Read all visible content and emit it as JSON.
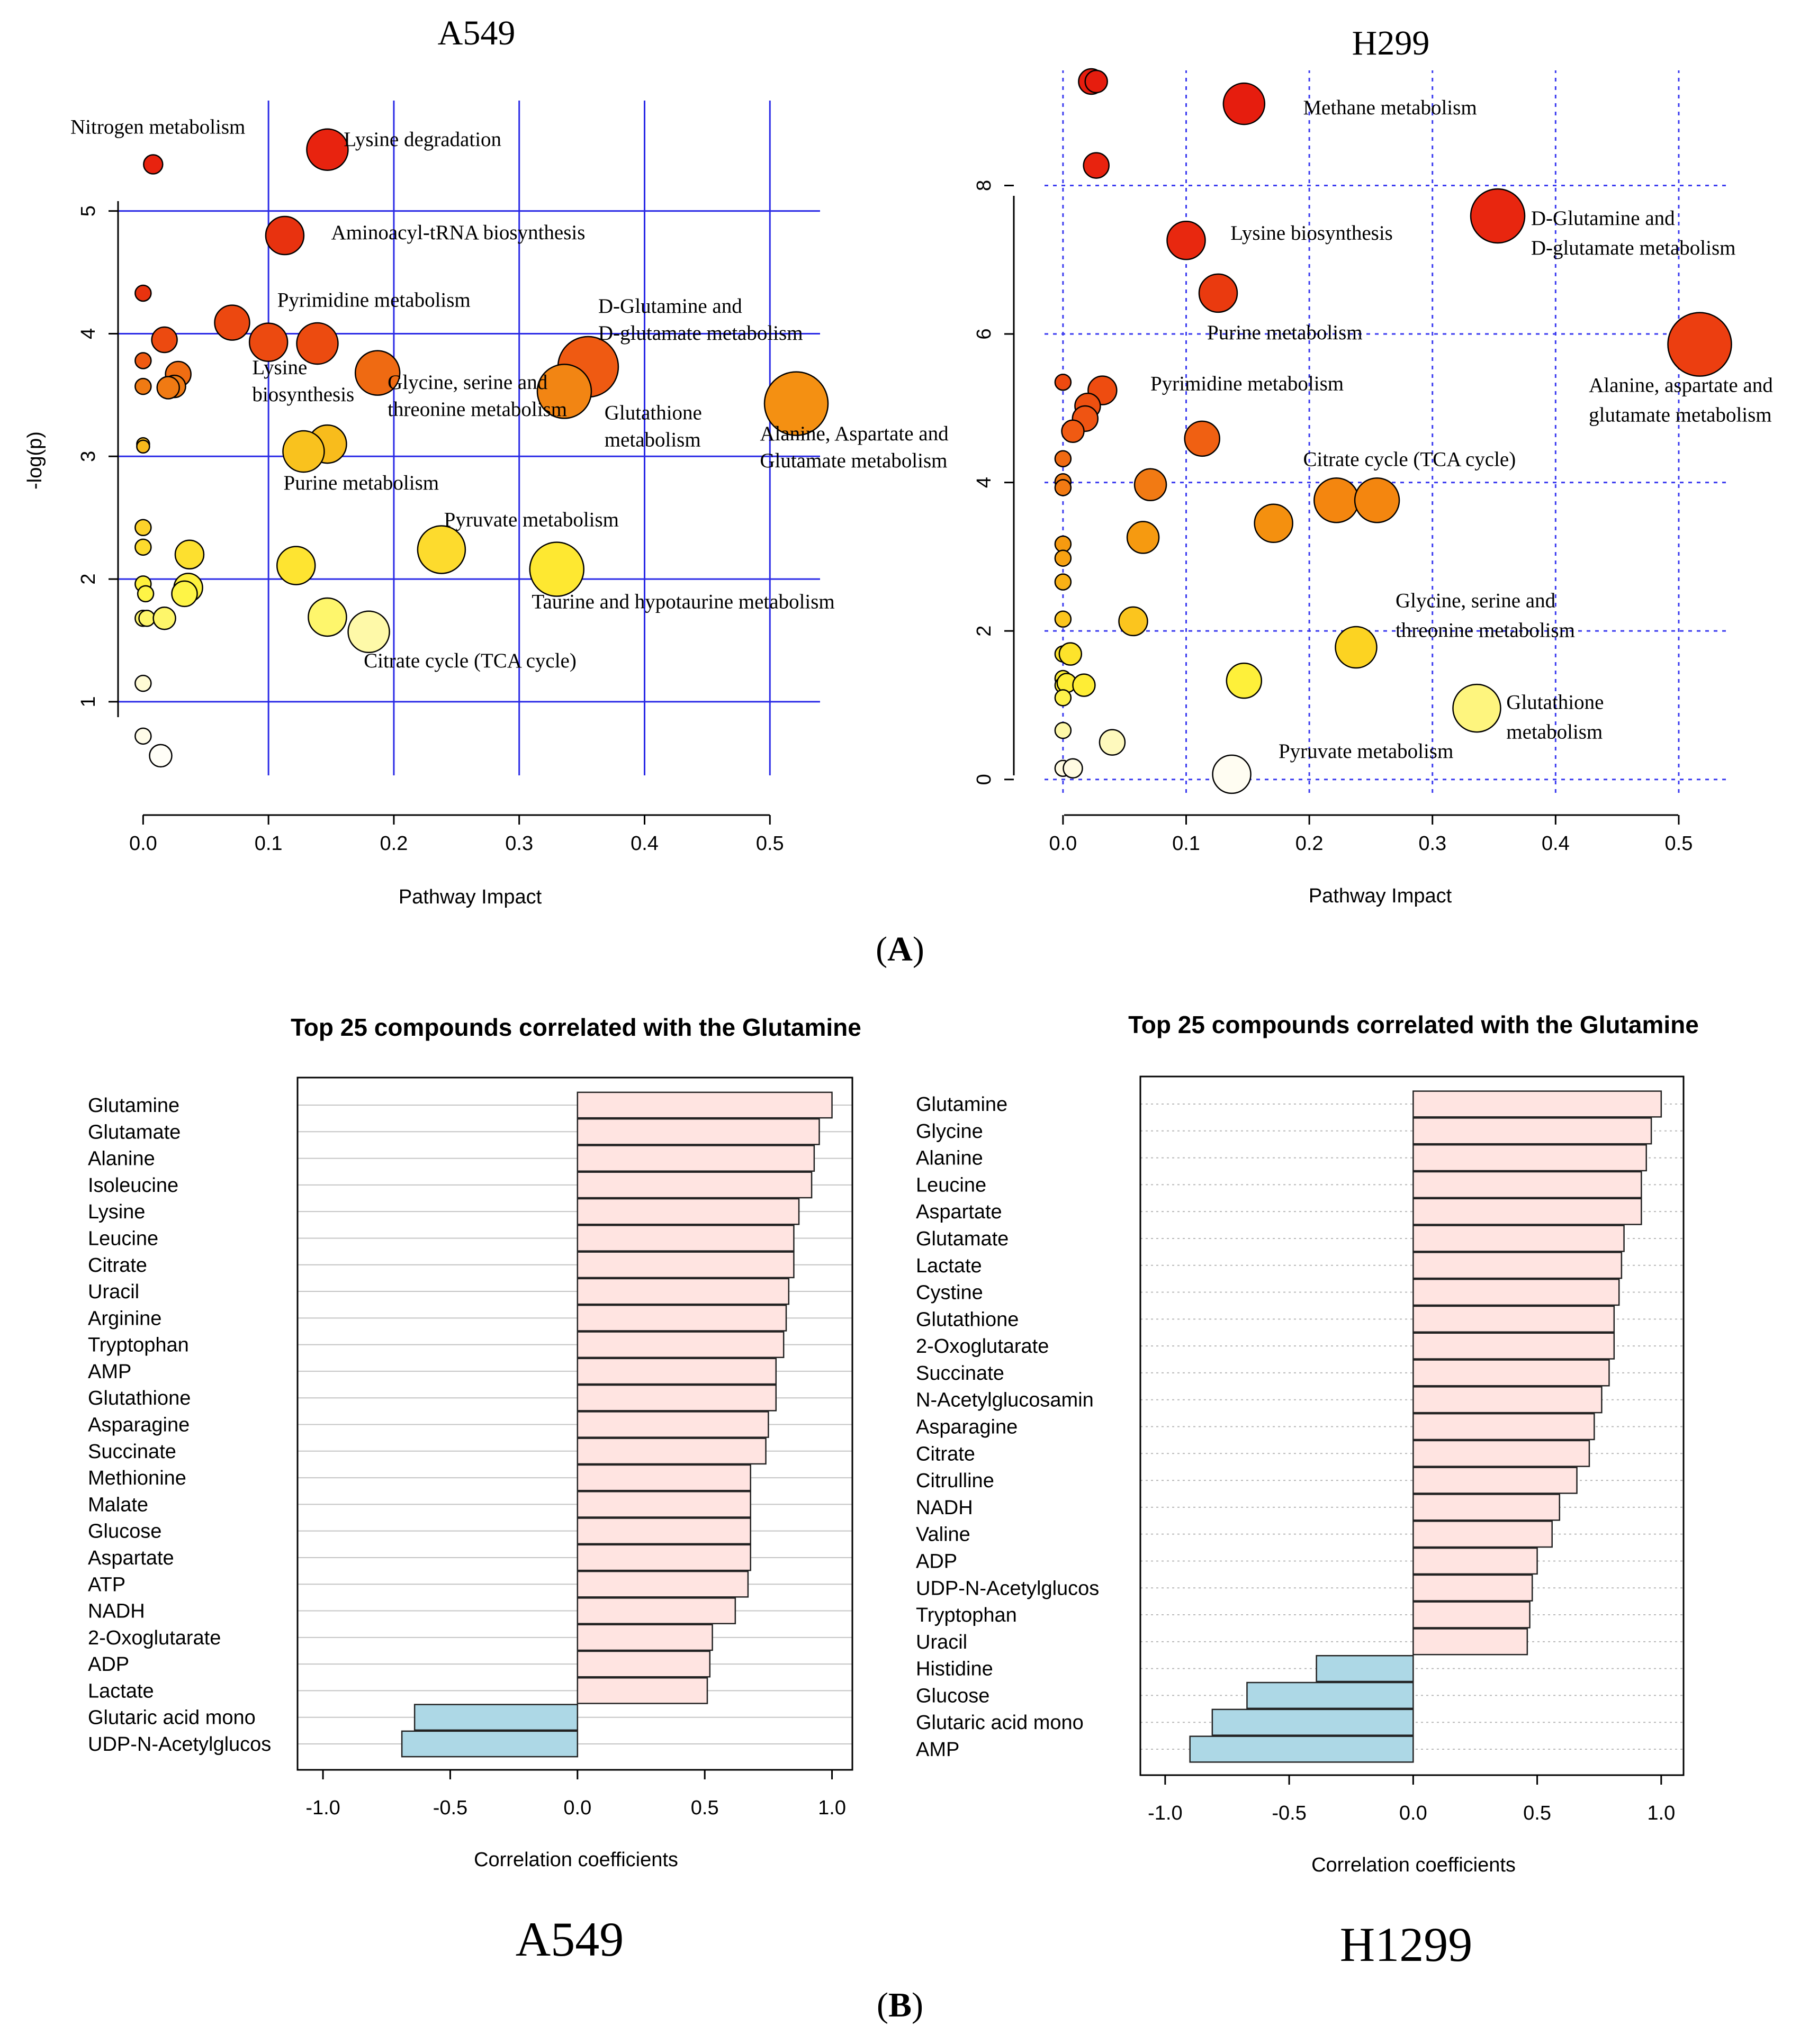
{
  "panel_a_label": "A",
  "panel_b_label": "B",
  "chart_data": [
    {
      "id": "a549_pathway",
      "type": "scatter",
      "title": "A549",
      "xlabel": "Pathway Impact",
      "ylabel": "-log(p)",
      "xlim": [
        -0.02,
        0.54
      ],
      "ylim": [
        0.4,
        5.9
      ],
      "xticks": [
        0.0,
        0.1,
        0.2,
        0.3,
        0.4,
        0.5
      ],
      "yticks": [
        1,
        2,
        3,
        4,
        5
      ],
      "xtick_labels": [
        "0.0",
        "0.1",
        "0.2",
        "0.3",
        "0.4",
        "0.5"
      ],
      "ytick_labels": [
        "1",
        "2",
        "3",
        "4",
        "5"
      ],
      "grid_x": [
        0.1,
        0.2,
        0.3,
        0.4,
        0.5
      ],
      "grid_y": [
        1,
        2,
        3,
        4,
        5
      ],
      "points": [
        {
          "x": 0.008,
          "y": 5.38,
          "r": 0.6,
          "color": "#e8230f"
        },
        {
          "x": 0.147,
          "y": 5.5,
          "r": 1.3,
          "color": "#e8230f"
        },
        {
          "x": 0.113,
          "y": 4.8,
          "r": 1.2,
          "color": "#e8320f"
        },
        {
          "x": 0.0,
          "y": 4.33,
          "r": 0.5,
          "color": "#e8330f"
        },
        {
          "x": 0.071,
          "y": 4.09,
          "r": 1.1,
          "color": "#ec4810"
        },
        {
          "x": 0.017,
          "y": 3.95,
          "r": 0.8,
          "color": "#ec4a10"
        },
        {
          "x": 0.1,
          "y": 3.93,
          "r": 1.2,
          "color": "#ec4a10"
        },
        {
          "x": 0.139,
          "y": 3.92,
          "r": 1.3,
          "color": "#ec4b10"
        },
        {
          "x": 0.0,
          "y": 3.78,
          "r": 0.5,
          "color": "#ef5a12"
        },
        {
          "x": 0.355,
          "y": 3.73,
          "r": 1.9,
          "color": "#ef5a12"
        },
        {
          "x": 0.187,
          "y": 3.68,
          "r": 1.4,
          "color": "#ef6a12"
        },
        {
          "x": 0.028,
          "y": 3.67,
          "r": 0.8,
          "color": "#f06d12"
        },
        {
          "x": 0.0,
          "y": 3.57,
          "r": 0.5,
          "color": "#f07a13"
        },
        {
          "x": 0.025,
          "y": 3.57,
          "r": 0.7,
          "color": "#f07a13"
        },
        {
          "x": 0.02,
          "y": 3.56,
          "r": 0.7,
          "color": "#f07a13"
        },
        {
          "x": 0.336,
          "y": 3.53,
          "r": 1.7,
          "color": "#f28513"
        },
        {
          "x": 0.521,
          "y": 3.43,
          "r": 2.0,
          "color": "#f49012"
        },
        {
          "x": 0.0,
          "y": 3.1,
          "r": 0.4,
          "color": "#f8ba1c"
        },
        {
          "x": 0.0,
          "y": 3.08,
          "r": 0.4,
          "color": "#f8ba1c"
        },
        {
          "x": 0.147,
          "y": 3.1,
          "r": 1.2,
          "color": "#f8bc1c"
        },
        {
          "x": 0.128,
          "y": 3.04,
          "r": 1.3,
          "color": "#f9c21e"
        },
        {
          "x": 0.0,
          "y": 2.42,
          "r": 0.5,
          "color": "#fcd22a"
        },
        {
          "x": 0.0,
          "y": 2.26,
          "r": 0.5,
          "color": "#fddb2d"
        },
        {
          "x": 0.238,
          "y": 2.24,
          "r": 1.5,
          "color": "#fddb2d"
        },
        {
          "x": 0.037,
          "y": 2.2,
          "r": 0.9,
          "color": "#fde02f"
        },
        {
          "x": 0.122,
          "y": 2.11,
          "r": 1.2,
          "color": "#fee431"
        },
        {
          "x": 0.33,
          "y": 2.08,
          "r": 1.7,
          "color": "#fee831"
        },
        {
          "x": 0.0,
          "y": 1.96,
          "r": 0.5,
          "color": "#fef13c"
        },
        {
          "x": 0.036,
          "y": 1.93,
          "r": 0.9,
          "color": "#fef13e"
        },
        {
          "x": 0.002,
          "y": 1.88,
          "r": 0.5,
          "color": "#fef446"
        },
        {
          "x": 0.033,
          "y": 1.88,
          "r": 0.8,
          "color": "#fef446"
        },
        {
          "x": 0.0,
          "y": 1.68,
          "r": 0.5,
          "color": "#fef66a"
        },
        {
          "x": 0.003,
          "y": 1.68,
          "r": 0.5,
          "color": "#fef66a"
        },
        {
          "x": 0.017,
          "y": 1.68,
          "r": 0.7,
          "color": "#fef66a"
        },
        {
          "x": 0.147,
          "y": 1.69,
          "r": 1.2,
          "color": "#fef66c"
        },
        {
          "x": 0.18,
          "y": 1.57,
          "r": 1.3,
          "color": "#fef9a8"
        },
        {
          "x": 0.0,
          "y": 1.15,
          "r": 0.5,
          "color": "#fffbd5"
        },
        {
          "x": 0.0,
          "y": 0.72,
          "r": 0.5,
          "color": "#fffce8"
        },
        {
          "x": 0.014,
          "y": 0.56,
          "r": 0.7,
          "color": "#fffef7"
        }
      ],
      "annotations": [
        {
          "text": "Nitrogen metabolism",
          "x": -0.058,
          "y": 5.63
        },
        {
          "text": "Lysine degradation",
          "x": 0.16,
          "y": 5.53
        },
        {
          "text": "Aminoacyl-tRNA biosynthesis",
          "x": 0.15,
          "y": 4.77
        },
        {
          "text": "Pyrimidine metabolism",
          "x": 0.107,
          "y": 4.22
        },
        {
          "text": "D-Glutamine and",
          "x": 0.363,
          "y": 4.17
        },
        {
          "text": "D-glutamate metabolism",
          "x": 0.363,
          "y": 3.95
        },
        {
          "text": "Lysine",
          "x": 0.087,
          "y": 3.67
        },
        {
          "text": "biosynthesis",
          "x": 0.087,
          "y": 3.45
        },
        {
          "text": "Glycine, serine and",
          "x": 0.195,
          "y": 3.55
        },
        {
          "text": "threonine metabolism",
          "x": 0.195,
          "y": 3.33
        },
        {
          "text": "Glutathione",
          "x": 0.368,
          "y": 3.3
        },
        {
          "text": "metabolism",
          "x": 0.368,
          "y": 3.08
        },
        {
          "text": "Alanine, Aspartate and",
          "x": 0.492,
          "y": 3.13
        },
        {
          "text": "Glutamate metabolism",
          "x": 0.492,
          "y": 2.91
        },
        {
          "text": "Purine metabolism",
          "x": 0.112,
          "y": 2.73
        },
        {
          "text": "Pyruvate metabolism",
          "x": 0.24,
          "y": 2.43
        },
        {
          "text": "Taurine and hypotaurine metabolism",
          "x": 0.31,
          "y": 1.76
        },
        {
          "text": "Citrate cycle (TCA cycle)",
          "x": 0.176,
          "y": 1.28
        }
      ]
    },
    {
      "id": "h299_pathway",
      "type": "scatter",
      "title": "H299",
      "xlabel": "Pathway Impact",
      "ylabel": "",
      "xlim": [
        -0.015,
        0.54
      ],
      "ylim": [
        -0.18,
        9.55
      ],
      "xticks": [
        0.0,
        0.1,
        0.2,
        0.3,
        0.4,
        0.5
      ],
      "yticks": [
        0,
        2,
        4,
        6,
        8
      ],
      "xtick_labels": [
        "0.0",
        "0.1",
        "0.2",
        "0.3",
        "0.4",
        "0.5"
      ],
      "ytick_labels": [
        "0",
        "2",
        "4",
        "6",
        "8"
      ],
      "grid_x": [
        0.0,
        0.1,
        0.2,
        0.3,
        0.4,
        0.5
      ],
      "grid_y": [
        0,
        2,
        4,
        6,
        8
      ],
      "points": [
        {
          "x": 0.023,
          "y": 9.4,
          "r": 0.8,
          "color": "#e61d0e"
        },
        {
          "x": 0.027,
          "y": 9.4,
          "r": 0.7,
          "color": "#e61d0e"
        },
        {
          "x": 0.147,
          "y": 9.1,
          "r": 1.3,
          "color": "#e61d0e"
        },
        {
          "x": 0.027,
          "y": 8.27,
          "r": 0.8,
          "color": "#e8230f"
        },
        {
          "x": 0.353,
          "y": 7.59,
          "r": 1.7,
          "color": "#e8260f"
        },
        {
          "x": 0.1,
          "y": 7.26,
          "r": 1.2,
          "color": "#e8280f"
        },
        {
          "x": 0.126,
          "y": 6.55,
          "r": 1.2,
          "color": "#ea3a0f"
        },
        {
          "x": 0.517,
          "y": 5.86,
          "r": 2.0,
          "color": "#ec3e10"
        },
        {
          "x": 0.0,
          "y": 5.35,
          "r": 0.5,
          "color": "#ee4a10"
        },
        {
          "x": 0.032,
          "y": 5.24,
          "r": 0.9,
          "color": "#ee4c10"
        },
        {
          "x": 0.02,
          "y": 5.03,
          "r": 0.8,
          "color": "#ee5010"
        },
        {
          "x": 0.018,
          "y": 4.86,
          "r": 0.8,
          "color": "#ef5412"
        },
        {
          "x": 0.008,
          "y": 4.69,
          "r": 0.7,
          "color": "#f05a12"
        },
        {
          "x": 0.113,
          "y": 4.59,
          "r": 1.1,
          "color": "#f06012"
        },
        {
          "x": 0.0,
          "y": 4.32,
          "r": 0.5,
          "color": "#f06a12"
        },
        {
          "x": 0.0,
          "y": 4.01,
          "r": 0.5,
          "color": "#f27a13"
        },
        {
          "x": 0.0,
          "y": 3.93,
          "r": 0.5,
          "color": "#f27a13"
        },
        {
          "x": 0.071,
          "y": 3.97,
          "r": 1.0,
          "color": "#f27a13"
        },
        {
          "x": 0.222,
          "y": 3.76,
          "r": 1.4,
          "color": "#f4860f"
        },
        {
          "x": 0.255,
          "y": 3.76,
          "r": 1.4,
          "color": "#f4860f"
        },
        {
          "x": 0.171,
          "y": 3.45,
          "r": 1.2,
          "color": "#f4900f"
        },
        {
          "x": 0.0,
          "y": 3.17,
          "r": 0.5,
          "color": "#f69a10"
        },
        {
          "x": 0.065,
          "y": 3.26,
          "r": 1.0,
          "color": "#f69a10"
        },
        {
          "x": 0.0,
          "y": 2.98,
          "r": 0.5,
          "color": "#f7a212"
        },
        {
          "x": 0.0,
          "y": 2.66,
          "r": 0.5,
          "color": "#f9b116"
        },
        {
          "x": 0.0,
          "y": 2.16,
          "r": 0.5,
          "color": "#fbc51e"
        },
        {
          "x": 0.057,
          "y": 2.13,
          "r": 0.9,
          "color": "#fbc51e"
        },
        {
          "x": 0.238,
          "y": 1.78,
          "r": 1.3,
          "color": "#fcd322"
        },
        {
          "x": 0.0,
          "y": 1.69,
          "r": 0.5,
          "color": "#fde32b"
        },
        {
          "x": 0.006,
          "y": 1.69,
          "r": 0.7,
          "color": "#fde32b"
        },
        {
          "x": 0.0,
          "y": 1.36,
          "r": 0.5,
          "color": "#feed35"
        },
        {
          "x": 0.0,
          "y": 1.27,
          "r": 0.5,
          "color": "#feed35"
        },
        {
          "x": 0.003,
          "y": 1.3,
          "r": 0.6,
          "color": "#feed35"
        },
        {
          "x": 0.017,
          "y": 1.27,
          "r": 0.7,
          "color": "#feed35"
        },
        {
          "x": 0.147,
          "y": 1.33,
          "r": 1.1,
          "color": "#fef03a"
        },
        {
          "x": 0.0,
          "y": 1.1,
          "r": 0.5,
          "color": "#fef14a"
        },
        {
          "x": 0.336,
          "y": 0.96,
          "r": 1.5,
          "color": "#fef57e"
        },
        {
          "x": 0.0,
          "y": 0.66,
          "r": 0.5,
          "color": "#fef8a8"
        },
        {
          "x": 0.04,
          "y": 0.5,
          "r": 0.8,
          "color": "#fef9bd"
        },
        {
          "x": 0.0,
          "y": 0.15,
          "r": 0.5,
          "color": "#fffbe2"
        },
        {
          "x": 0.008,
          "y": 0.15,
          "r": 0.6,
          "color": "#fffbe2"
        },
        {
          "x": 0.137,
          "y": 0.07,
          "r": 1.2,
          "color": "#fffdf2"
        }
      ],
      "annotations": [
        {
          "text": "Methane metabolism",
          "x": 0.195,
          "y": 8.96
        },
        {
          "text": "D-Glutamine and",
          "x": 0.38,
          "y": 7.47
        },
        {
          "text": "D-glutamate metabolism",
          "x": 0.38,
          "y": 7.07
        },
        {
          "text": "Lysine biosynthesis",
          "x": 0.136,
          "y": 7.27
        },
        {
          "text": "Purine metabolism",
          "x": 0.117,
          "y": 5.93
        },
        {
          "text": "Pyrimidine metabolism",
          "x": 0.071,
          "y": 5.24
        },
        {
          "text": "Alanine, aspartate and",
          "x": 0.427,
          "y": 5.22
        },
        {
          "text": "glutamate metabolism",
          "x": 0.427,
          "y": 4.82
        },
        {
          "text": "Citrate cycle (TCA cycle)",
          "x": 0.195,
          "y": 4.22
        },
        {
          "text": "Glycine, serine and",
          "x": 0.27,
          "y": 2.32
        },
        {
          "text": "threonine metabolism",
          "x": 0.27,
          "y": 1.92
        },
        {
          "text": "Glutathione",
          "x": 0.36,
          "y": 0.95
        },
        {
          "text": "metabolism",
          "x": 0.36,
          "y": 0.55
        },
        {
          "text": "Pyruvate metabolism",
          "x": 0.175,
          "y": 0.29
        }
      ]
    },
    {
      "id": "a549_correlation",
      "type": "bar",
      "orientation": "horizontal",
      "title": "Top 25 compounds correlated with the Glutamine",
      "xlabel": "Correlation coefficients",
      "subtitle": "A549",
      "xlim": [
        -1.1,
        1.08
      ],
      "xticks": [
        -1.0,
        -0.5,
        0.0,
        0.5,
        1.0
      ],
      "xtick_labels": [
        "-1.0",
        "-0.5",
        "0.0",
        "0.5",
        "1.0"
      ],
      "positive_color": "#ffe4e1",
      "negative_color": "#add8e6",
      "categories": [
        "Glutamine",
        "Glutamate",
        "Alanine",
        "Isoleucine",
        "Lysine",
        "Leucine",
        "Citrate",
        "Uracil",
        "Arginine",
        "Tryptophan",
        "AMP",
        "Glutathione",
        "Asparagine",
        "Succinate",
        "Methionine",
        "Malate",
        "Glucose",
        "Aspartate",
        "ATP",
        "NADH",
        "2-Oxoglutarate",
        "ADP",
        "Lactate",
        "Glutaric acid mono",
        "UDP-N-Acetylglucos"
      ],
      "values": [
        1.0,
        0.95,
        0.93,
        0.92,
        0.87,
        0.85,
        0.85,
        0.83,
        0.82,
        0.81,
        0.78,
        0.78,
        0.75,
        0.74,
        0.68,
        0.68,
        0.68,
        0.68,
        0.67,
        0.62,
        0.53,
        0.52,
        0.51,
        -0.64,
        -0.69
      ]
    },
    {
      "id": "h1299_correlation",
      "type": "bar",
      "orientation": "horizontal",
      "title": "Top 25 compounds correlated with the Glutamine",
      "xlabel": "Correlation coefficients",
      "subtitle": "H1299",
      "xlim": [
        -1.1,
        1.09
      ],
      "xticks": [
        -1.0,
        -0.5,
        0.0,
        0.5,
        1.0
      ],
      "xtick_labels": [
        "-1.0",
        "-0.5",
        "0.0",
        "0.5",
        "1.0"
      ],
      "positive_color": "#ffe4e1",
      "negative_color": "#add8e6",
      "categories": [
        "Glutamine",
        "Glycine",
        "Alanine",
        "Leucine",
        "Aspartate",
        "Glutamate",
        "Lactate",
        "Cystine",
        "Glutathione",
        "2-Oxoglutarate",
        "Succinate",
        "N-Acetylglucosamin",
        "Asparagine",
        "Citrate",
        "Citrulline",
        "NADH",
        "Valine",
        "ADP",
        "UDP-N-Acetylglucos",
        "Tryptophan",
        "Uracil",
        "Histidine",
        "Glucose",
        "Glutaric acid mono",
        "AMP"
      ],
      "values": [
        1.0,
        0.96,
        0.94,
        0.92,
        0.92,
        0.85,
        0.84,
        0.83,
        0.81,
        0.81,
        0.79,
        0.76,
        0.73,
        0.71,
        0.66,
        0.59,
        0.56,
        0.5,
        0.48,
        0.47,
        0.46,
        -0.39,
        -0.67,
        -0.81,
        -0.9
      ]
    }
  ]
}
